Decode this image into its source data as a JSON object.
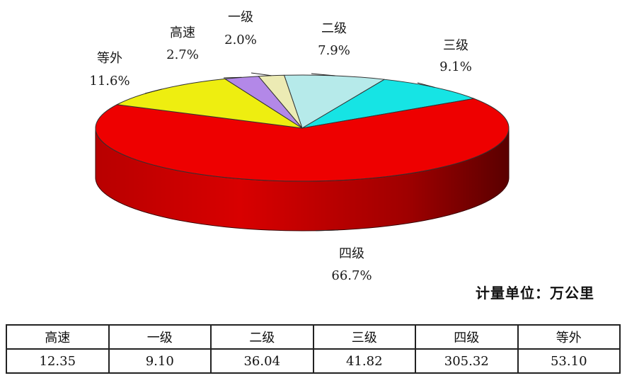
{
  "chart_data": {
    "type": "pie",
    "style": "3d",
    "unit_note": "计量单位：万公里",
    "slices": [
      {
        "name": "二级",
        "percent": "7.9%",
        "value": 7.9,
        "color": "#b6eaea"
      },
      {
        "name": "三级",
        "percent": "9.1%",
        "value": 9.1,
        "color": "#16e4e4"
      },
      {
        "name": "四级",
        "percent": "66.7%",
        "value": 66.7,
        "color": "#ee0000"
      },
      {
        "name": "等外",
        "percent": "11.6%",
        "value": 11.6,
        "color": "#eeee10"
      },
      {
        "name": "高速",
        "percent": "2.7%",
        "value": 2.7,
        "color": "#b388e8"
      },
      {
        "name": "一级",
        "percent": "2.0%",
        "value": 2.0,
        "color": "#ecebb4"
      }
    ],
    "table": {
      "headers": [
        "高速",
        "一级",
        "二级",
        "三级",
        "四级",
        "等外"
      ],
      "values": [
        "12.35",
        "9.10",
        "36.04",
        "41.82",
        "305.32",
        "53.10"
      ]
    }
  }
}
